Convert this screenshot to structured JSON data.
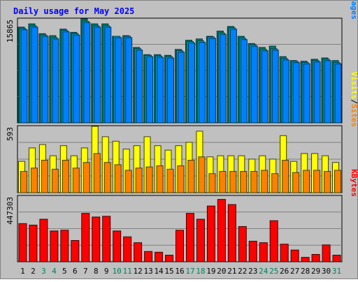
{
  "title": "Daily usage for May 2025",
  "colors": {
    "background": "#c0c0c0",
    "frame_border": "#808080",
    "title_text": "#0000ff",
    "grid_line": "#808080",
    "hits": "#00805c",
    "files": "#00c0ff",
    "pages": "#0080ff",
    "visits": "#ff8000",
    "sites": "#ffff00",
    "kbytes": "#ff0000",
    "weekend_day_label": "#00805c",
    "weekday_label": "#000000"
  },
  "chart_data": [
    {
      "type": "bar",
      "panel": "hits-files-pages",
      "ymax_label": "15865",
      "ylim": [
        0,
        15865
      ],
      "legend": [
        {
          "text": "Pages",
          "color_key": "pages"
        },
        {
          "text": "/",
          "color_key": "weekday_label"
        },
        {
          "text": "Files",
          "color_key": "files"
        },
        {
          "text": "/",
          "color_key": "weekday_label"
        },
        {
          "text": "Hits",
          "color_key": "hits"
        }
      ],
      "categories": [
        "1",
        "2",
        "3",
        "4",
        "5",
        "6",
        "7",
        "8",
        "9",
        "10",
        "11",
        "12",
        "13",
        "14",
        "15",
        "16",
        "17",
        "18",
        "19",
        "20",
        "21",
        "22",
        "23",
        "24",
        "25",
        "26",
        "27",
        "28",
        "29",
        "30",
        "31"
      ],
      "series": [
        {
          "name": "Hits",
          "color_key": "hits",
          "values": [
            14600,
            15100,
            13600,
            13300,
            14300,
            13800,
            15865,
            15100,
            15100,
            13200,
            13300,
            11500,
            10400,
            10400,
            10300,
            11200,
            12600,
            12800,
            13200,
            14000,
            14700,
            13200,
            12100,
            11500,
            11700,
            10100,
            9500,
            9400,
            9700,
            9900,
            9500
          ]
        },
        {
          "name": "Files",
          "color_key": "files",
          "values": [
            14400,
            14800,
            13400,
            13000,
            14100,
            13600,
            15500,
            14800,
            14800,
            13200,
            13200,
            11300,
            10300,
            10200,
            10100,
            11000,
            12400,
            12500,
            13100,
            13700,
            14500,
            12900,
            11900,
            11200,
            11300,
            9800,
            9400,
            9200,
            9500,
            9700,
            9200
          ]
        },
        {
          "name": "Pages",
          "color_key": "pages",
          "values": [
            14200,
            14600,
            13200,
            12800,
            13900,
            13400,
            15300,
            14600,
            14600,
            13000,
            13000,
            11100,
            10100,
            10000,
            9900,
            10800,
            12200,
            12300,
            12900,
            13500,
            14300,
            12700,
            11700,
            11000,
            11100,
            9600,
            9200,
            9000,
            9300,
            9500,
            9000
          ]
        }
      ]
    },
    {
      "type": "bar",
      "panel": "visits-sites",
      "ymax_label": "593",
      "ylim": [
        0,
        593
      ],
      "legend": [
        {
          "text": "Sites",
          "color_key": "visits"
        },
        {
          "text": "/",
          "color_key": "weekday_label"
        },
        {
          "text": "Visits",
          "color_key": "sites"
        }
      ],
      "categories": [
        "1",
        "2",
        "3",
        "4",
        "5",
        "6",
        "7",
        "8",
        "9",
        "10",
        "11",
        "12",
        "13",
        "14",
        "15",
        "16",
        "17",
        "18",
        "19",
        "20",
        "21",
        "22",
        "23",
        "24",
        "25",
        "26",
        "27",
        "28",
        "29",
        "30",
        "31"
      ],
      "series": [
        {
          "name": "Visits",
          "color_key": "sites",
          "values": [
            280,
            400,
            430,
            330,
            420,
            330,
            400,
            593,
            500,
            460,
            390,
            420,
            500,
            420,
            380,
            420,
            450,
            550,
            320,
            330,
            330,
            330,
            300,
            330,
            300,
            510,
            280,
            350,
            350,
            330,
            270
          ]
        },
        {
          "name": "Sites",
          "color_key": "visits",
          "values": [
            190,
            220,
            290,
            210,
            290,
            220,
            270,
            350,
            270,
            250,
            200,
            220,
            230,
            240,
            210,
            240,
            290,
            320,
            170,
            190,
            190,
            190,
            190,
            200,
            170,
            290,
            180,
            200,
            200,
            190,
            200
          ]
        }
      ]
    },
    {
      "type": "bar",
      "panel": "kbytes",
      "ymax_label": "447303",
      "ylim": [
        0,
        447303
      ],
      "legend": [
        {
          "text": "KBytes",
          "color_key": "kbytes"
        }
      ],
      "categories": [
        "1",
        "2",
        "3",
        "4",
        "5",
        "6",
        "7",
        "8",
        "9",
        "10",
        "11",
        "12",
        "13",
        "14",
        "15",
        "16",
        "17",
        "18",
        "19",
        "20",
        "21",
        "22",
        "23",
        "24",
        "25",
        "26",
        "27",
        "28",
        "29",
        "30",
        "31"
      ],
      "series": [
        {
          "name": "KBytes",
          "color_key": "kbytes",
          "values": [
            260000,
            250000,
            290000,
            210000,
            215000,
            145000,
            330000,
            305000,
            310000,
            210000,
            170000,
            130000,
            70000,
            65000,
            45000,
            215000,
            330000,
            290000,
            380000,
            425000,
            390000,
            240000,
            140000,
            130000,
            280000,
            120000,
            80000,
            30000,
            50000,
            115000,
            45000
          ]
        }
      ]
    }
  ],
  "x_axis_labels": [
    {
      "text": "1",
      "weekend": false
    },
    {
      "text": "2",
      "weekend": false
    },
    {
      "text": "3",
      "weekend": true
    },
    {
      "text": "4",
      "weekend": true
    },
    {
      "text": "5",
      "weekend": false
    },
    {
      "text": "6",
      "weekend": false
    },
    {
      "text": "7",
      "weekend": false
    },
    {
      "text": "8",
      "weekend": false
    },
    {
      "text": "9",
      "weekend": false
    },
    {
      "text": "10",
      "weekend": true
    },
    {
      "text": "11",
      "weekend": true
    },
    {
      "text": "12",
      "weekend": false
    },
    {
      "text": "13",
      "weekend": false
    },
    {
      "text": "14",
      "weekend": false
    },
    {
      "text": "15",
      "weekend": false
    },
    {
      "text": "16",
      "weekend": false
    },
    {
      "text": "17",
      "weekend": true
    },
    {
      "text": "18",
      "weekend": true
    },
    {
      "text": "19",
      "weekend": false
    },
    {
      "text": "20",
      "weekend": false
    },
    {
      "text": "21",
      "weekend": false
    },
    {
      "text": "22",
      "weekend": false
    },
    {
      "text": "23",
      "weekend": false
    },
    {
      "text": "24",
      "weekend": true
    },
    {
      "text": "25",
      "weekend": true
    },
    {
      "text": "26",
      "weekend": false
    },
    {
      "text": "27",
      "weekend": false
    },
    {
      "text": "28",
      "weekend": false
    },
    {
      "text": "29",
      "weekend": false
    },
    {
      "text": "30",
      "weekend": false
    },
    {
      "text": "31",
      "weekend": true
    }
  ]
}
